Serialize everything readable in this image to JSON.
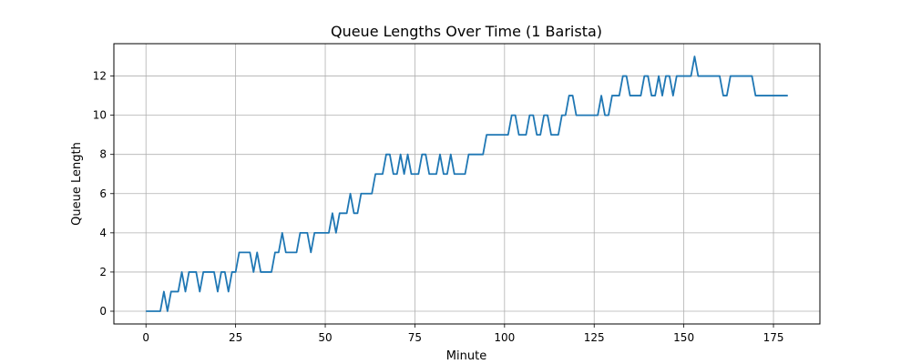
{
  "chart_data": {
    "type": "line",
    "title": "Queue Lengths Over Time (1 Barista)",
    "xlabel": "Minute",
    "ylabel": "Queue Length",
    "xlim": [
      -8.95,
      187.95
    ],
    "ylim": [
      -0.65,
      13.65
    ],
    "xticks": [
      0,
      25,
      50,
      75,
      100,
      125,
      150,
      175
    ],
    "yticks": [
      0,
      2,
      4,
      6,
      8,
      10,
      12
    ],
    "grid": true,
    "color": "#1f77b4",
    "series": [
      {
        "values": [
          0,
          0,
          0,
          0,
          0,
          1,
          0,
          1,
          1,
          1,
          2,
          1,
          2,
          2,
          2,
          1,
          2,
          2,
          2,
          2,
          1,
          2,
          2,
          1,
          2,
          2,
          3,
          3,
          3,
          3,
          2,
          3,
          2,
          2,
          2,
          2,
          3,
          3,
          4,
          3,
          3,
          3,
          3,
          4,
          4,
          4,
          3,
          4,
          4,
          4,
          4,
          4,
          5,
          4,
          5,
          5,
          5,
          6,
          5,
          5,
          6,
          6,
          6,
          6,
          7,
          7,
          7,
          8,
          8,
          7,
          7,
          8,
          7,
          8,
          7,
          7,
          7,
          8,
          8,
          7,
          7,
          7,
          8,
          7,
          7,
          8,
          7,
          7,
          7,
          7,
          8,
          8,
          8,
          8,
          8,
          9,
          9,
          9,
          9,
          9,
          9,
          9,
          10,
          10,
          9,
          9,
          9,
          10,
          10,
          9,
          9,
          10,
          10,
          9,
          9,
          9,
          10,
          10,
          11,
          11,
          10,
          10,
          10,
          10,
          10,
          10,
          10,
          11,
          10,
          10,
          11,
          11,
          11,
          12,
          12,
          11,
          11,
          11,
          11,
          12,
          12,
          11,
          11,
          12,
          11,
          12,
          12,
          11,
          12,
          12,
          12,
          12,
          12,
          13,
          12,
          12,
          12,
          12,
          12,
          12,
          12,
          11,
          11,
          12,
          12,
          12,
          12,
          12,
          12,
          12,
          11,
          11,
          11,
          11,
          11,
          11,
          11,
          11,
          11,
          11
        ]
      }
    ]
  }
}
